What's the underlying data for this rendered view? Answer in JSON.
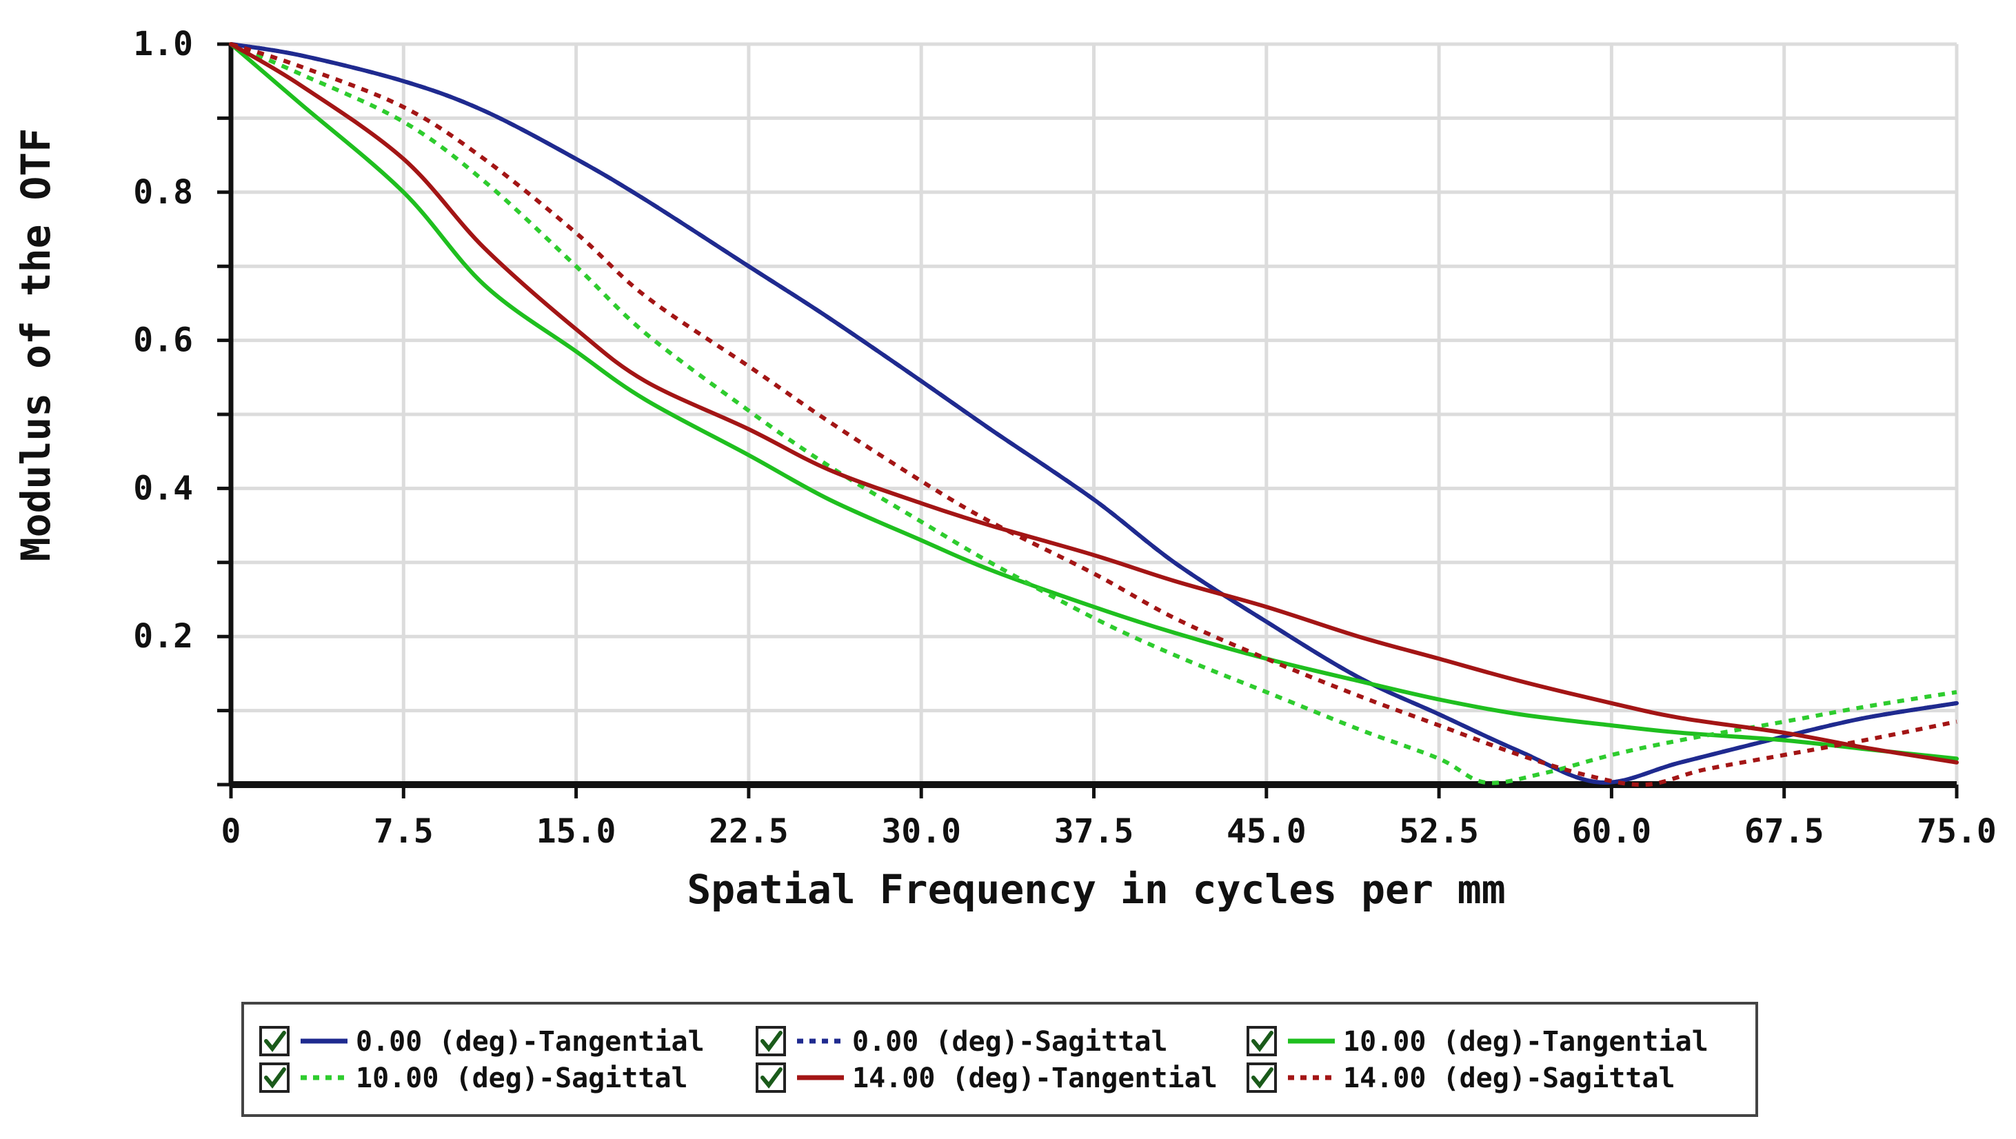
{
  "chart_data": {
    "type": "line",
    "title": "",
    "xlabel": "Spatial Frequency in cycles per mm",
    "ylabel": "Modulus of the OTF",
    "xlim": [
      0,
      75
    ],
    "ylim": [
      0,
      1.0
    ],
    "x_ticks": [
      "0",
      "7.5",
      "15.0",
      "22.5",
      "30.0",
      "37.5",
      "45.0",
      "52.5",
      "60.0",
      "67.5",
      "75.0"
    ],
    "y_ticks": [
      "0.2",
      "0.4",
      "0.6",
      "0.8",
      "1.0"
    ],
    "grid": true,
    "legend_position": "bottom",
    "series": [
      {
        "name": "0.00 (deg)-Tangential",
        "color": "#1f2a8f",
        "style": "solid",
        "x": [
          0,
          3,
          7.5,
          11,
          15,
          18,
          22.5,
          26,
          30,
          33,
          37.5,
          41,
          45,
          49,
          52.5,
          56,
          59.5,
          63,
          67.5,
          71,
          75
        ],
        "y": [
          1.0,
          0.985,
          0.95,
          0.91,
          0.845,
          0.79,
          0.7,
          0.63,
          0.545,
          0.48,
          0.385,
          0.3,
          0.22,
          0.145,
          0.095,
          0.045,
          0.003,
          0.03,
          0.065,
          0.09,
          0.11
        ]
      },
      {
        "name": "0.00 (deg)-Sagittal",
        "color": "#1f2a8f",
        "style": "dotted",
        "x": [
          0,
          3,
          7.5,
          11,
          15,
          18,
          22.5,
          26,
          30,
          33,
          37.5,
          41,
          45,
          49,
          52.5,
          56,
          59.5,
          63,
          67.5,
          71,
          75
        ],
        "y": [
          1.0,
          0.985,
          0.95,
          0.91,
          0.845,
          0.79,
          0.7,
          0.63,
          0.545,
          0.48,
          0.385,
          0.3,
          0.22,
          0.145,
          0.095,
          0.045,
          0.003,
          0.03,
          0.065,
          0.09,
          0.11
        ]
      },
      {
        "name": "10.00 (deg)-Tangential",
        "color": "#1fbf1f",
        "style": "solid",
        "x": [
          0,
          3,
          7.5,
          11,
          15,
          18,
          22.5,
          26,
          30,
          33,
          37.5,
          41,
          45,
          49,
          52.5,
          56,
          60,
          63,
          67.5,
          71,
          75
        ],
        "y": [
          1.0,
          0.92,
          0.8,
          0.675,
          0.585,
          0.52,
          0.445,
          0.385,
          0.33,
          0.29,
          0.24,
          0.205,
          0.17,
          0.14,
          0.115,
          0.095,
          0.08,
          0.07,
          0.06,
          0.048,
          0.035
        ]
      },
      {
        "name": "10.00 (deg)-Sagittal",
        "color": "#2ecc2e",
        "style": "dotted",
        "x": [
          0,
          3,
          7.5,
          11,
          15,
          18,
          22.5,
          26,
          30,
          33,
          37.5,
          41,
          45,
          49,
          52.5,
          54.5,
          57,
          60,
          63,
          67.5,
          71,
          75
        ],
        "y": [
          1.0,
          0.96,
          0.895,
          0.815,
          0.7,
          0.61,
          0.505,
          0.43,
          0.355,
          0.3,
          0.225,
          0.175,
          0.125,
          0.075,
          0.035,
          0.003,
          0.015,
          0.04,
          0.06,
          0.085,
          0.105,
          0.125
        ]
      },
      {
        "name": "14.00 (deg)-Tangential",
        "color": "#a31515",
        "style": "solid",
        "x": [
          0,
          3,
          7.5,
          11,
          15,
          18,
          22.5,
          26,
          30,
          33,
          37.5,
          41,
          45,
          49,
          52.5,
          56,
          60,
          63,
          67.5,
          71,
          75
        ],
        "y": [
          1.0,
          0.945,
          0.845,
          0.725,
          0.615,
          0.545,
          0.48,
          0.425,
          0.38,
          0.35,
          0.31,
          0.275,
          0.24,
          0.2,
          0.17,
          0.14,
          0.11,
          0.09,
          0.07,
          0.05,
          0.03
        ]
      },
      {
        "name": "14.00 (deg)-Sagittal",
        "color": "#a31515",
        "style": "dotted",
        "x": [
          0,
          3,
          7.5,
          11,
          15,
          18,
          22.5,
          26,
          30,
          33,
          37.5,
          41,
          45,
          49,
          52.5,
          56,
          59,
          61.5,
          64,
          67.5,
          71,
          75
        ],
        "y": [
          1.0,
          0.97,
          0.915,
          0.845,
          0.745,
          0.66,
          0.565,
          0.49,
          0.41,
          0.355,
          0.285,
          0.225,
          0.17,
          0.12,
          0.08,
          0.04,
          0.012,
          0.0,
          0.02,
          0.04,
          0.06,
          0.085
        ]
      }
    ]
  }
}
